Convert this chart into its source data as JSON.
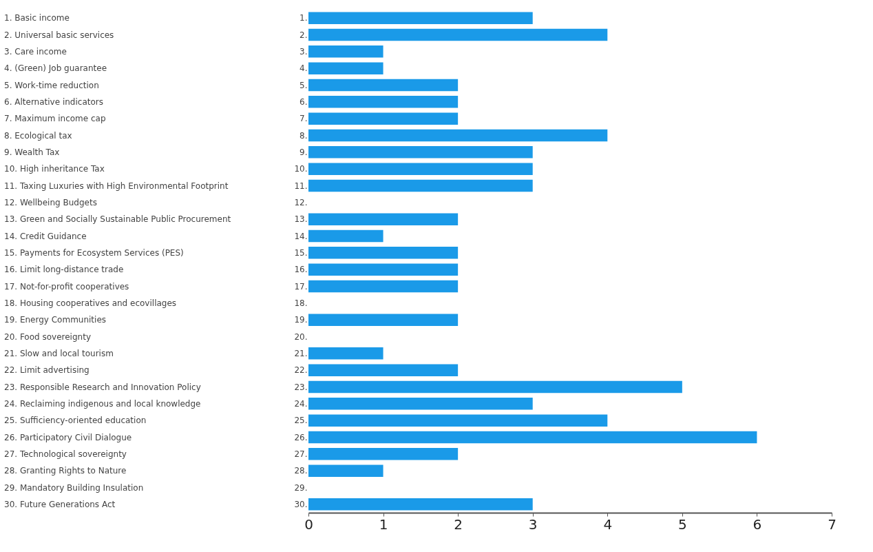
{
  "chart_data": {
    "type": "bar",
    "orientation": "horizontal",
    "categories": [
      "1.",
      "2.",
      "3.",
      "4.",
      "5.",
      "6.",
      "7.",
      "8.",
      "9.",
      "10.",
      "11.",
      "12.",
      "13.",
      "14.",
      "15.",
      "16.",
      "17.",
      "18.",
      "19.",
      "20.",
      "21.",
      "22.",
      "23.",
      "24.",
      "25.",
      "26.",
      "27.",
      "28.",
      "29.",
      "30."
    ],
    "values": [
      3,
      4,
      1,
      1,
      2,
      2,
      2,
      4,
      3,
      3,
      3,
      0,
      2,
      1,
      2,
      2,
      2,
      0,
      2,
      0,
      1,
      2,
      5,
      3,
      4,
      6,
      2,
      1,
      0,
      3
    ],
    "color": "#1a9ae8",
    "xlim": [
      0,
      7
    ],
    "xticks": [
      0,
      1,
      2,
      3,
      4,
      5,
      6,
      7
    ],
    "grid": false,
    "annotations": [
      "1. Basic income",
      "2. Universal basic services",
      "3. Care income",
      "4. (Green) Job guarantee",
      "5. Work-time reduction",
      "6. Alternative indicators",
      "7. Maximum income cap",
      "8. Ecological tax",
      "9. Wealth Tax",
      "10. High inheritance Tax",
      "11. Taxing Luxuries with High Environmental Footprint",
      "12. Wellbeing Budgets",
      "13. Green and Socially Sustainable Public Procurement",
      "14. Credit Guidance",
      "15. Payments for Ecosystem Services (PES)",
      "16. Limit long-distance trade",
      "17. Not-for-profit cooperatives",
      "18. Housing cooperatives and ecovillages",
      "19. Energy Communities",
      "20. Food sovereignty",
      "21. Slow and local tourism",
      "22. Limit advertising",
      "23. Responsible Research and Innovation Policy",
      "24. Reclaiming indigenous and local knowledge",
      "25. Sufficiency-oriented education",
      "26. Participatory Civil Dialogue",
      "27. Technological sovereignty",
      "28. Granting Rights to Nature",
      "29. Mandatory Building Insulation",
      "30. Future Generations Act"
    ]
  }
}
